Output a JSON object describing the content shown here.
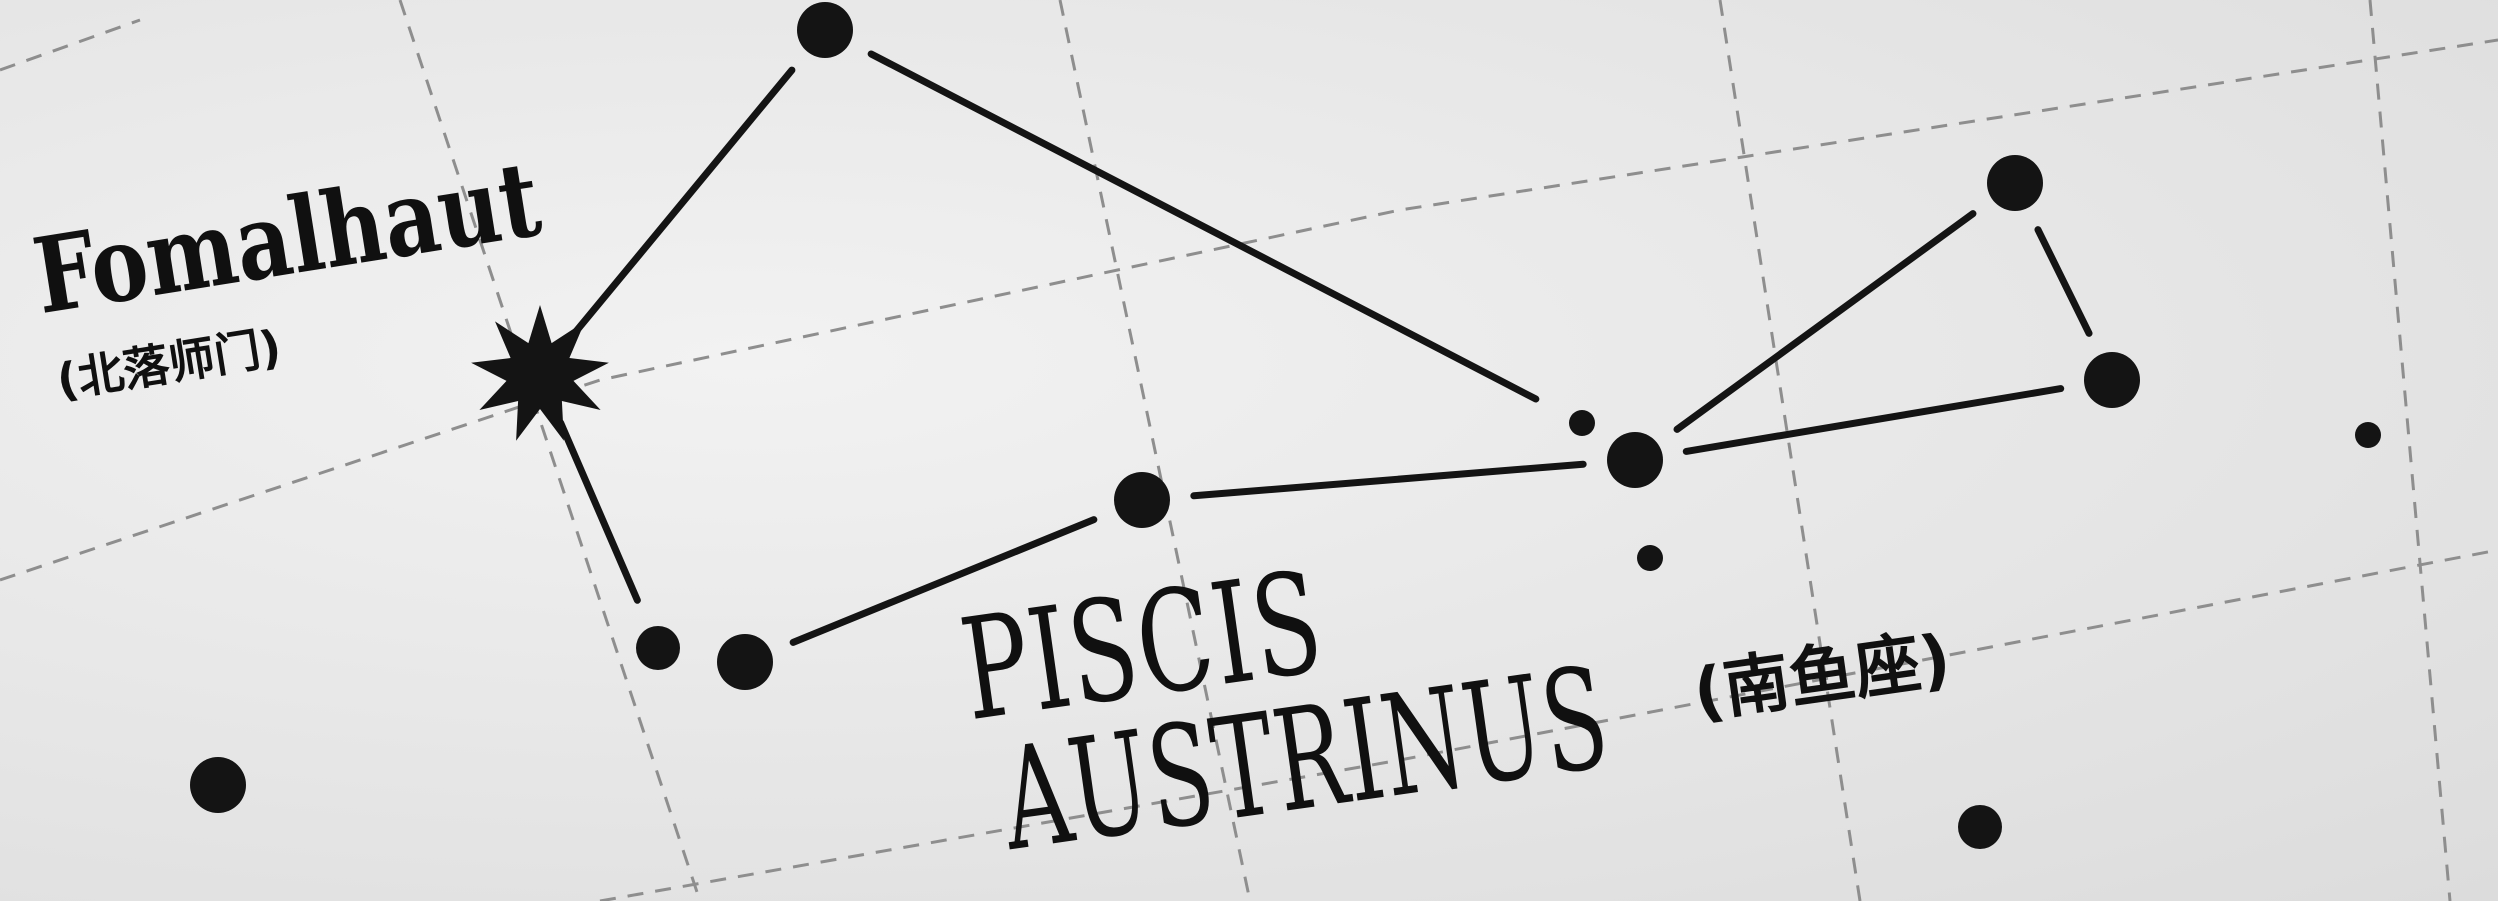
{
  "labels": {
    "star_name": "Fomalhaut",
    "star_name_cn": "(北落师门)",
    "constellation_line1": "PISCIS",
    "constellation_line2": "AUSTRINUS",
    "constellation_cn": "(南鱼座)"
  },
  "colors": {
    "paper": "#e9e9e9",
    "ink": "#141414",
    "grid": "#8e8e8e"
  },
  "stars": [
    {
      "id": "fomalhaut",
      "magnitude_class": "brightest",
      "symbol": "star-burst"
    },
    {
      "id": "top",
      "magnitude_class": "bright"
    },
    {
      "id": "left-lower-a",
      "magnitude_class": "medium"
    },
    {
      "id": "left-lower-b",
      "magnitude_class": "bright"
    },
    {
      "id": "mid",
      "magnitude_class": "bright"
    },
    {
      "id": "center",
      "magnitude_class": "bright"
    },
    {
      "id": "right-top",
      "magnitude_class": "bright"
    },
    {
      "id": "right-tip",
      "magnitude_class": "bright"
    },
    {
      "id": "small-1",
      "magnitude_class": "faint"
    },
    {
      "id": "small-2",
      "magnitude_class": "faint"
    },
    {
      "id": "far-right",
      "magnitude_class": "faint"
    },
    {
      "id": "bottom-left",
      "magnitude_class": "bright"
    },
    {
      "id": "bottom-right",
      "magnitude_class": "medium"
    }
  ],
  "constellation_lines": [
    [
      "fomalhaut",
      "top"
    ],
    [
      "top",
      "small-1"
    ],
    [
      "fomalhaut",
      "left-lower-a"
    ],
    [
      "left-lower-b",
      "mid"
    ],
    [
      "mid",
      "center"
    ],
    [
      "center",
      "right-top"
    ],
    [
      "right-top",
      "right-tip"
    ],
    [
      "right-tip",
      "center"
    ]
  ]
}
